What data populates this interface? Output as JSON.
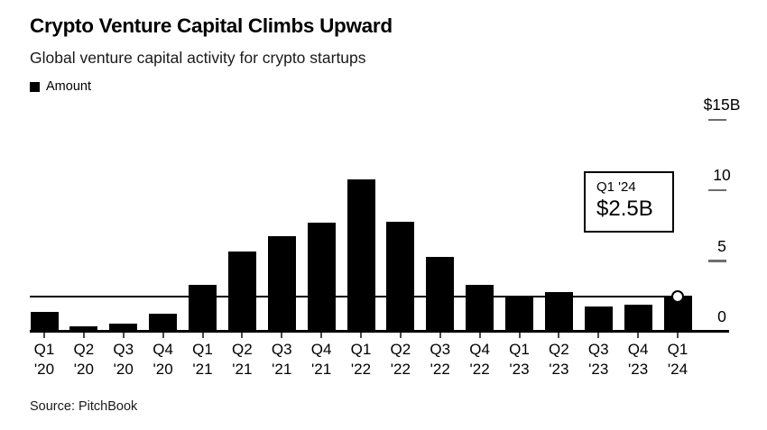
{
  "chart_data": {
    "type": "bar",
    "title": "Crypto Venture Capital Climbs Upward",
    "subtitle": "Global venture capital activity for crypto startups",
    "series_name": "Amount",
    "source": "Source: PitchBook",
    "unit": "USD billions",
    "bar_color": "#000000",
    "background_color": "#ffffff",
    "legend_position": "top-left",
    "y_axis_side": "right",
    "grid": false,
    "categories": [
      "Q1 '20",
      "Q2 '20",
      "Q3 '20",
      "Q4 '20",
      "Q1 '21",
      "Q2 '21",
      "Q3 '21",
      "Q4 '21",
      "Q1 '22",
      "Q2 '22",
      "Q3 '22",
      "Q4 '22",
      "Q1 '23",
      "Q2 '23",
      "Q3 '23",
      "Q4 '23",
      "Q1 '24"
    ],
    "values": [
      1.4,
      0.4,
      0.6,
      1.3,
      3.3,
      5.7,
      6.8,
      7.7,
      10.8,
      7.8,
      5.3,
      3.3,
      2.5,
      2.8,
      1.8,
      1.9,
      2.5
    ],
    "ylim": [
      0,
      15
    ],
    "yticks": [
      {
        "value": 15,
        "label": "$15B"
      },
      {
        "value": 10,
        "label": "10"
      },
      {
        "value": 5,
        "label": "5"
      },
      {
        "value": 0,
        "label": "0"
      }
    ],
    "reference_line": {
      "value": 2.5,
      "note": "horizontal line at latest value"
    },
    "annotation": {
      "category": "Q1 '24",
      "label": "Q1 '24",
      "value_label": "$2.5B",
      "value": 2.5,
      "marker": "white circle on top of last bar"
    }
  }
}
